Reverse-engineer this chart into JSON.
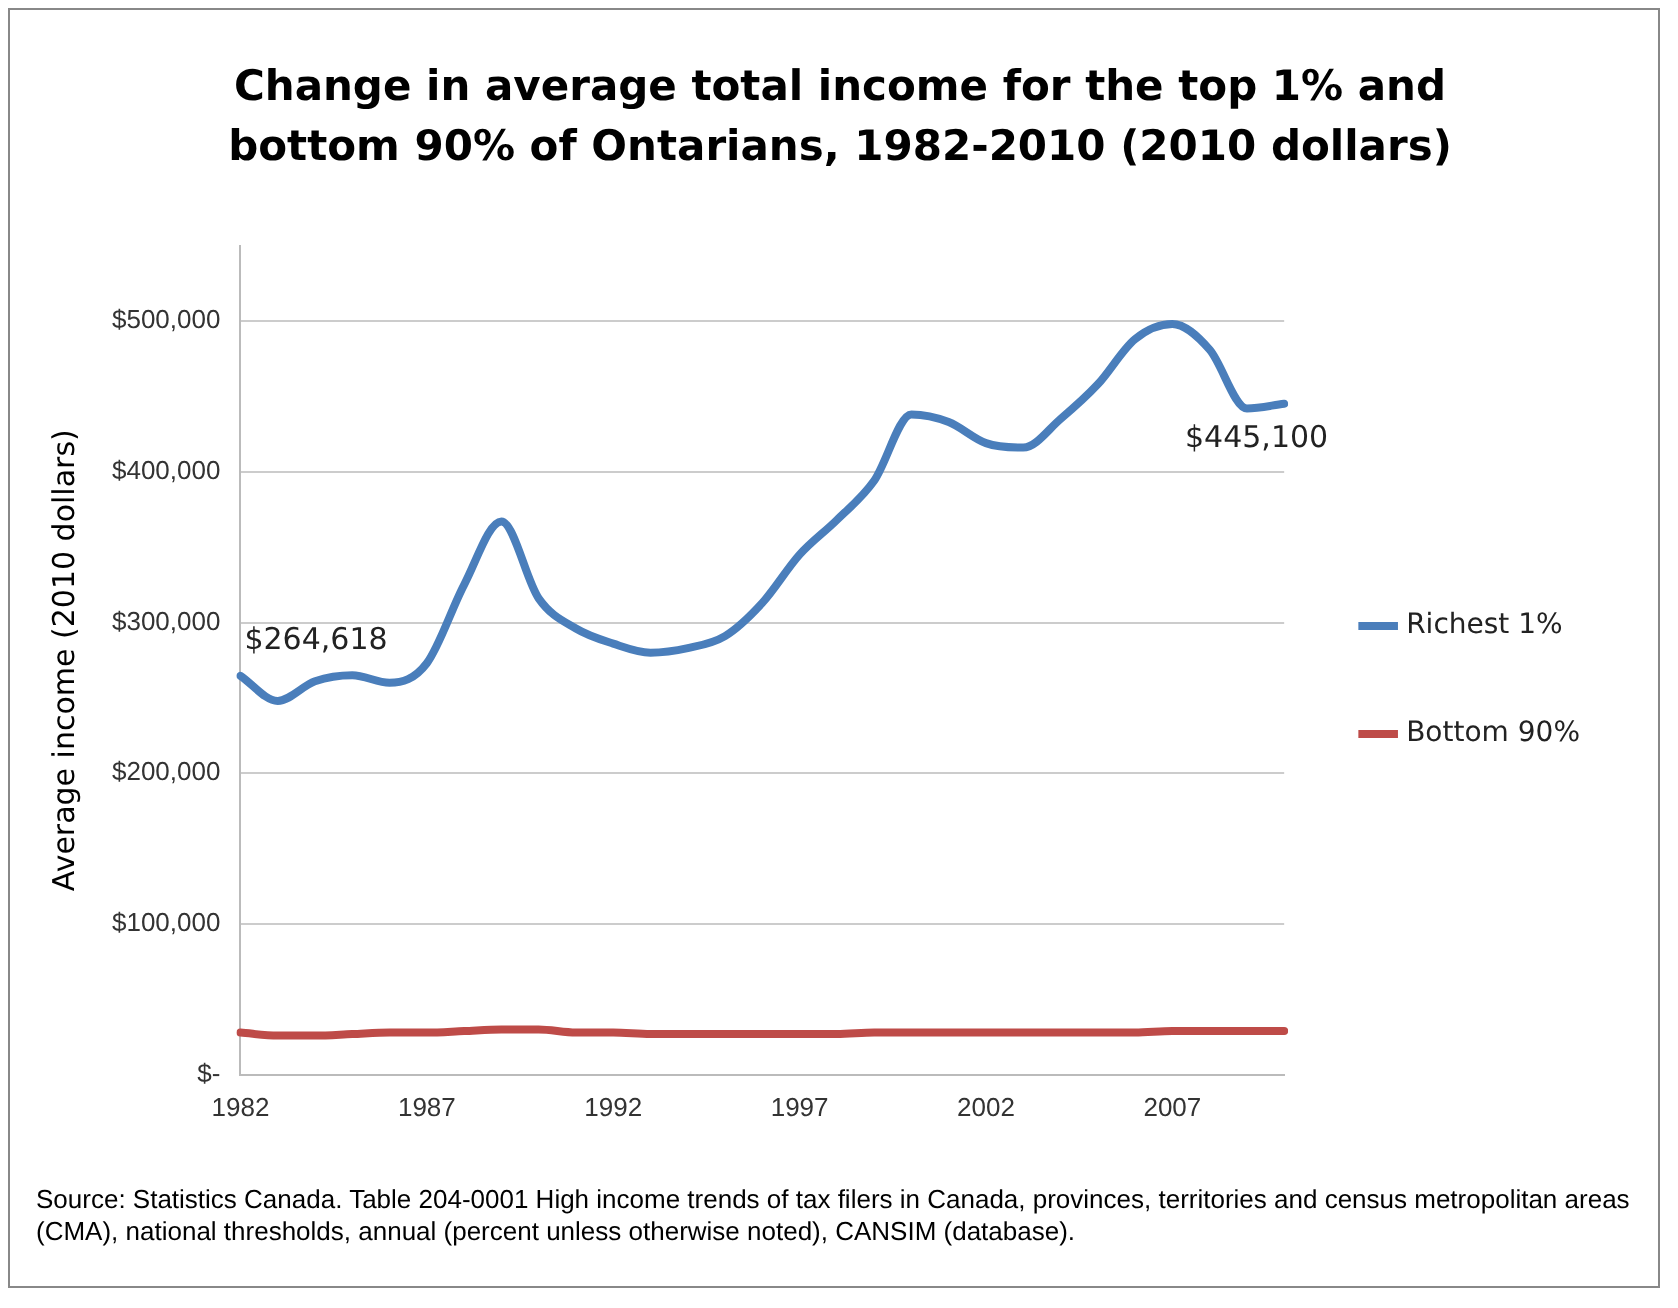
{
  "chart_data": {
    "type": "line",
    "title": "Change in average total income for the top 1% and bottom 90% of Ontarians, 1982-2010 (2010 dollars)",
    "ylabel": "Average income (2010 dollars)",
    "categories": [
      "1982",
      null,
      null,
      null,
      null,
      "1987",
      null,
      null,
      null,
      null,
      "1992",
      null,
      null,
      null,
      null,
      "1997",
      null,
      null,
      null,
      null,
      "2002",
      null,
      null,
      null,
      null,
      "2007",
      null,
      null,
      null
    ],
    "series": [
      {
        "name": "Richest 1%",
        "color": "#4a7ebb",
        "values": [
          264618,
          248000,
          261000,
          265000,
          260000,
          273000,
          325000,
          367000,
          316000,
          296000,
          286000,
          280000,
          283000,
          291000,
          313000,
          345000,
          368000,
          394000,
          438000,
          433000,
          419000,
          416000,
          435000,
          458000,
          488000,
          498000,
          481000,
          442000,
          445100
        ],
        "value_labels": [
          "$264,618",
          null,
          null,
          null,
          null,
          null,
          null,
          null,
          null,
          null,
          null,
          null,
          null,
          null,
          null,
          null,
          null,
          null,
          null,
          null,
          null,
          null,
          null,
          null,
          null,
          null,
          null,
          null,
          "$445,100"
        ]
      },
      {
        "name": "Bottom 90%",
        "color": "#be4b48",
        "values": [
          28000,
          26000,
          26000,
          27000,
          28000,
          28000,
          29000,
          30000,
          30000,
          28000,
          28000,
          27000,
          27000,
          27000,
          27000,
          27000,
          27000,
          28000,
          28000,
          28000,
          28000,
          28000,
          28000,
          28000,
          28000,
          29000,
          29000,
          29000,
          29000
        ]
      }
    ],
    "ylim": [
      0,
      550000
    ],
    "yticks": [
      {
        "value": 0,
        "label": "$-"
      },
      {
        "value": 100000,
        "label": "$100,000"
      },
      {
        "value": 200000,
        "label": "$200,000"
      },
      {
        "value": 300000,
        "label": "$300,000"
      },
      {
        "value": 400000,
        "label": "$400,000"
      },
      {
        "value": 500000,
        "label": "$500,000"
      }
    ],
    "grid": "y",
    "legend": "right",
    "marker": "none",
    "line_style": "solid",
    "annotations": [
      "Source: Statistics Canada. Table 204-0001 High income trends of tax filers in Canada, provinces, territories and census metropolitan areas (CMA), national thresholds, annual (percent unless otherwise noted), CANSIM (database)."
    ]
  }
}
